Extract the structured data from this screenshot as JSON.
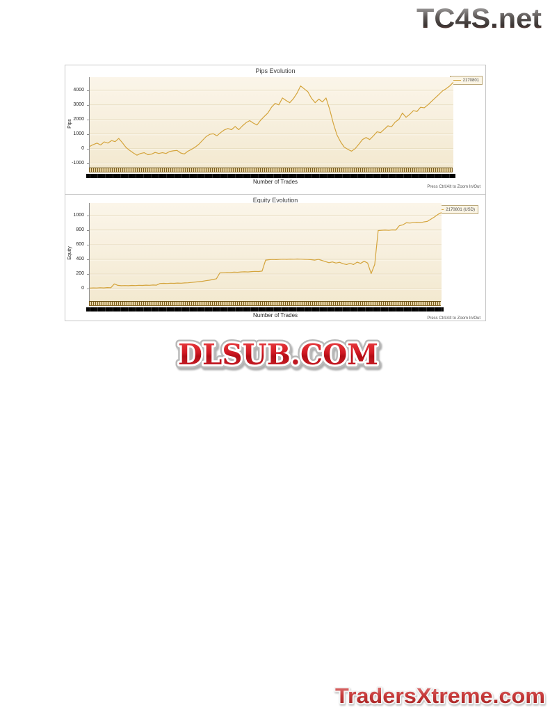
{
  "branding": {
    "site_logo": "TC4S.net",
    "watermark": "DLSUB.COM",
    "footer_site": "TradersXtreme.com"
  },
  "colors": {
    "series_line": "#d4a43c",
    "gridline": "#e5d9bc",
    "grid_highlight": "#fdf9ef",
    "panel_border": "#c6c6c6",
    "axis_line": "#909090",
    "legend_border": "#bba87a",
    "legend_bg": "#fbf5e5",
    "logo_red": "#c41019"
  },
  "chart_data": [
    {
      "type": "line",
      "title": "Pips Evolution",
      "ylabel": "Pips",
      "xlabel": "Number of Trades",
      "legend": [
        {
          "label": "2170801",
          "color": "#d4a43c"
        }
      ],
      "legend_position": "top-right",
      "grid": "horizontal",
      "ylim": [
        -1300,
        4900
      ],
      "y_ticks": [
        4000,
        3000,
        2000,
        1000,
        0,
        -1000
      ],
      "x_axis_note": "hundreds of overlapping trade-number tick labels forming a solid dark band",
      "zoom_hint": "Press Ctrl/Alt to Zoom In/Out",
      "values": [
        150,
        280,
        380,
        250,
        460,
        380,
        550,
        480,
        700,
        400,
        80,
        -120,
        -300,
        -450,
        -330,
        -280,
        -420,
        -380,
        -260,
        -330,
        -280,
        -330,
        -200,
        -150,
        -120,
        -300,
        -370,
        -180,
        -50,
        100,
        300,
        560,
        820,
        980,
        1020,
        880,
        1100,
        1280,
        1380,
        1300,
        1520,
        1300,
        1560,
        1780,
        1920,
        1750,
        1620,
        1950,
        2200,
        2450,
        2840,
        3100,
        3000,
        3475,
        3300,
        3150,
        3420,
        3800,
        4300,
        4100,
        3900,
        3450,
        3150,
        3400,
        3200,
        3475,
        2680,
        1730,
        940,
        460,
        100,
        -50,
        -175,
        0,
        300,
        620,
        760,
        620,
        870,
        1150,
        1100,
        1330,
        1560,
        1500,
        1820,
        2000,
        2440,
        2150,
        2350,
        2600,
        2550,
        2840,
        2800,
        3000,
        3240,
        3475,
        3710,
        3950,
        4110,
        4300,
        4550
      ]
    },
    {
      "type": "line",
      "title": "Equity Evolution",
      "ylabel": "Equity",
      "xlabel": "Number of Trades",
      "legend": [
        {
          "label": "2170801 (USD)",
          "color": "#d4a43c"
        }
      ],
      "legend_position": "top-right",
      "grid": "horizontal",
      "ylim": [
        -170,
        1170
      ],
      "y_ticks": [
        1000,
        800,
        600,
        400,
        200,
        0
      ],
      "x_axis_note": "hundreds of overlapping trade-number tick labels forming a solid dark band",
      "zoom_hint": "Press Ctrl/Alt to Zoom In/Out",
      "values": [
        8,
        10,
        9,
        12,
        10,
        14,
        12,
        65,
        45,
        40,
        42,
        40,
        44,
        42,
        46,
        44,
        48,
        46,
        50,
        48,
        70,
        72,
        70,
        74,
        72,
        76,
        74,
        78,
        80,
        85,
        90,
        95,
        100,
        108,
        115,
        125,
        135,
        215,
        218,
        222,
        220,
        225,
        223,
        228,
        230,
        228,
        233,
        236,
        234,
        240,
        390,
        395,
        398,
        396,
        400,
        402,
        400,
        404,
        402,
        405,
        403,
        400,
        398,
        395,
        390,
        400,
        385,
        370,
        355,
        365,
        350,
        360,
        340,
        330,
        345,
        330,
        362,
        345,
        375,
        350,
        206,
        330,
        795,
        798,
        800,
        797,
        802,
        800,
        860,
        872,
        900,
        896,
        902,
        905,
        900,
        912,
        920,
        950,
        980,
        1015,
        1040
      ]
    }
  ]
}
